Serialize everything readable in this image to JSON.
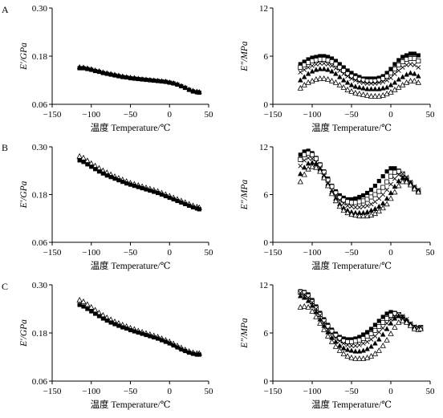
{
  "panel_labels": [
    "A",
    "B",
    "C"
  ],
  "chart_data": [
    {
      "type": "scatter",
      "panel": "A",
      "ylabel": "E′/GPa",
      "xlabel": "温度  Temperature/℃",
      "xlim": [
        -150,
        50
      ],
      "ylim": [
        0.06,
        0.3
      ],
      "xticks": [
        "−150",
        "−100",
        "−50",
        "0",
        "50"
      ],
      "yticks": [
        "0.06",
        "0.18",
        "0.30"
      ],
      "x": [
        -115,
        -110,
        -105,
        -100,
        -95,
        -90,
        -85,
        -80,
        -75,
        -70,
        -65,
        -60,
        -55,
        -50,
        -45,
        -40,
        -35,
        -30,
        -25,
        -20,
        -15,
        -10,
        -5,
        0,
        5,
        10,
        15,
        20,
        25,
        30,
        35,
        38
      ],
      "series": [
        {
          "marker": "triangle-filled",
          "values": [
            0.153,
            0.152,
            0.15,
            0.148,
            0.145,
            0.143,
            0.14,
            0.138,
            0.136,
            0.134,
            0.132,
            0.13,
            0.128,
            0.127,
            0.126,
            0.124,
            0.123,
            0.122,
            0.121,
            0.12,
            0.119,
            0.118,
            0.117,
            0.115,
            0.113,
            0.11,
            0.106,
            0.102,
            0.097,
            0.094,
            0.092,
            0.091
          ]
        },
        {
          "marker": "square-filled",
          "values": [
            0.15,
            0.15,
            0.148,
            0.146,
            0.143,
            0.141,
            0.138,
            0.136,
            0.134,
            0.132,
            0.13,
            0.128,
            0.127,
            0.125,
            0.124,
            0.123,
            0.122,
            0.121,
            0.12,
            0.119,
            0.118,
            0.117,
            0.116,
            0.114,
            0.112,
            0.109,
            0.105,
            0.101,
            0.096,
            0.092,
            0.09,
            0.089
          ]
        }
      ]
    },
    {
      "type": "scatter",
      "panel": "A",
      "ylabel": "E″/MPa",
      "xlabel": "温度  Temperature/℃",
      "xlim": [
        -150,
        50
      ],
      "ylim": [
        0,
        12
      ],
      "xticks": [
        "−150",
        "−100",
        "−50",
        "0",
        "50"
      ],
      "yticks": [
        "0",
        "6",
        "12"
      ],
      "x": [
        -115,
        -110,
        -105,
        -100,
        -95,
        -90,
        -85,
        -80,
        -75,
        -70,
        -65,
        -60,
        -55,
        -50,
        -45,
        -40,
        -35,
        -30,
        -25,
        -20,
        -15,
        -10,
        -5,
        0,
        5,
        10,
        15,
        20,
        25,
        30,
        35
      ],
      "series": [
        {
          "marker": "square-filled",
          "values": [
            5.0,
            5.3,
            5.6,
            5.8,
            5.9,
            6.0,
            6.0,
            5.9,
            5.7,
            5.4,
            5.0,
            4.6,
            4.2,
            3.9,
            3.6,
            3.4,
            3.2,
            3.2,
            3.2,
            3.2,
            3.3,
            3.5,
            3.9,
            4.4,
            5.0,
            5.5,
            5.9,
            6.1,
            6.3,
            6.3,
            6.1
          ]
        },
        {
          "marker": "square-open",
          "values": [
            4.6,
            4.9,
            5.2,
            5.4,
            5.5,
            5.6,
            5.6,
            5.5,
            5.3,
            5.0,
            4.6,
            4.2,
            3.8,
            3.5,
            3.3,
            3.1,
            3.0,
            2.9,
            2.9,
            2.9,
            3.0,
            3.2,
            3.5,
            3.9,
            4.4,
            4.9,
            5.3,
            5.6,
            5.7,
            5.7,
            5.4
          ]
        },
        {
          "marker": "cross",
          "values": [
            4.0,
            4.3,
            4.6,
            4.8,
            5.0,
            5.1,
            5.1,
            5.0,
            4.8,
            4.5,
            4.2,
            3.8,
            3.5,
            3.2,
            3.0,
            2.8,
            2.7,
            2.6,
            2.6,
            2.6,
            2.7,
            2.8,
            3.0,
            3.3,
            3.8,
            4.2,
            4.6,
            4.9,
            5.0,
            4.9,
            4.6
          ]
        },
        {
          "marker": "triangle-filled",
          "values": [
            3.0,
            3.4,
            3.8,
            4.1,
            4.3,
            4.4,
            4.4,
            4.3,
            4.1,
            3.8,
            3.4,
            3.0,
            2.7,
            2.4,
            2.2,
            2.1,
            2.0,
            1.9,
            1.9,
            1.9,
            1.9,
            2.0,
            2.1,
            2.4,
            2.7,
            3.1,
            3.4,
            3.7,
            3.9,
            3.8,
            3.5
          ]
        },
        {
          "marker": "triangle-open",
          "values": [
            2.0,
            2.4,
            2.7,
            2.9,
            3.1,
            3.2,
            3.2,
            3.1,
            2.9,
            2.7,
            2.4,
            2.1,
            1.8,
            1.6,
            1.4,
            1.3,
            1.2,
            1.1,
            1.0,
            1.0,
            1.0,
            1.1,
            1.3,
            1.5,
            1.8,
            2.1,
            2.4,
            2.7,
            2.9,
            2.9,
            2.7
          ]
        }
      ]
    },
    {
      "type": "scatter",
      "panel": "B",
      "ylabel": "E′/GPa",
      "xlabel": "温度  Temperature/℃",
      "xlim": [
        -150,
        50
      ],
      "ylim": [
        0.06,
        0.3
      ],
      "xticks": [
        "−150",
        "−100",
        "−50",
        "0",
        "50"
      ],
      "yticks": [
        "0.06",
        "0.18",
        "0.30"
      ],
      "x": [
        -115,
        -110,
        -105,
        -100,
        -95,
        -90,
        -85,
        -80,
        -75,
        -70,
        -65,
        -60,
        -55,
        -50,
        -45,
        -40,
        -35,
        -30,
        -25,
        -20,
        -15,
        -10,
        -5,
        0,
        5,
        10,
        15,
        20,
        25,
        30,
        35,
        38
      ],
      "series": [
        {
          "marker": "triangle-open",
          "values": [
            0.276,
            0.272,
            0.265,
            0.258,
            0.252,
            0.246,
            0.24,
            0.235,
            0.23,
            0.225,
            0.221,
            0.217,
            0.213,
            0.209,
            0.206,
            0.203,
            0.2,
            0.197,
            0.194,
            0.191,
            0.188,
            0.184,
            0.18,
            0.176,
            0.172,
            0.168,
            0.164,
            0.16,
            0.156,
            0.152,
            0.149,
            0.147
          ]
        },
        {
          "marker": "square-filled",
          "values": [
            0.266,
            0.262,
            0.256,
            0.25,
            0.244,
            0.238,
            0.233,
            0.228,
            0.224,
            0.22,
            0.216,
            0.212,
            0.208,
            0.205,
            0.202,
            0.199,
            0.196,
            0.193,
            0.19,
            0.187,
            0.184,
            0.18,
            0.176,
            0.172,
            0.168,
            0.164,
            0.16,
            0.156,
            0.152,
            0.148,
            0.145,
            0.143
          ]
        }
      ]
    },
    {
      "type": "scatter",
      "panel": "B",
      "ylabel": "E″/MPa",
      "xlabel": "温度  Temperature/℃",
      "xlim": [
        -150,
        50
      ],
      "ylim": [
        0,
        12
      ],
      "xticks": [
        "−150",
        "−100",
        "−50",
        "0",
        "50"
      ],
      "yticks": [
        "0",
        "6",
        "12"
      ],
      "x": [
        -115,
        -110,
        -105,
        -100,
        -95,
        -90,
        -85,
        -80,
        -75,
        -70,
        -65,
        -60,
        -55,
        -50,
        -45,
        -40,
        -35,
        -30,
        -25,
        -20,
        -15,
        -10,
        -5,
        0,
        5,
        10,
        15,
        20,
        25,
        30,
        35
      ],
      "series": [
        {
          "marker": "square-filled",
          "values": [
            11.0,
            11.4,
            11.5,
            11.2,
            10.6,
            9.8,
            8.9,
            8.0,
            7.1,
            6.4,
            5.9,
            5.6,
            5.4,
            5.4,
            5.5,
            5.7,
            5.9,
            6.2,
            6.6,
            7.1,
            7.7,
            8.3,
            8.9,
            9.3,
            9.3,
            9.0,
            8.5,
            7.9,
            7.3,
            6.8,
            6.4
          ]
        },
        {
          "marker": "square-open",
          "values": [
            10.4,
            11.0,
            11.2,
            11.0,
            10.5,
            9.7,
            8.8,
            7.8,
            7.0,
            6.2,
            5.6,
            5.3,
            5.1,
            5.0,
            5.0,
            5.1,
            5.2,
            5.4,
            5.7,
            6.0,
            6.4,
            6.9,
            7.6,
            8.3,
            8.8,
            8.9,
            8.6,
            8.0,
            7.4,
            6.8,
            6.4
          ]
        },
        {
          "marker": "cross",
          "values": [
            9.6,
            10.3,
            10.6,
            10.5,
            10.1,
            9.4,
            8.5,
            7.5,
            6.6,
            5.9,
            5.3,
            4.9,
            4.6,
            4.5,
            4.4,
            4.4,
            4.5,
            4.6,
            4.8,
            5.1,
            5.5,
            6.0,
            6.6,
            7.3,
            8.0,
            8.5,
            8.6,
            8.2,
            7.6,
            7.0,
            6.6
          ]
        },
        {
          "marker": "triangle-filled",
          "values": [
            8.6,
            9.4,
            9.9,
            10.0,
            9.8,
            9.2,
            8.3,
            7.3,
            6.3,
            5.5,
            4.8,
            4.3,
            4.0,
            3.8,
            3.7,
            3.7,
            3.7,
            3.8,
            4.0,
            4.2,
            4.5,
            4.9,
            5.5,
            6.2,
            7.0,
            7.7,
            8.1,
            8.0,
            7.5,
            6.9,
            6.5
          ]
        },
        {
          "marker": "triangle-open",
          "values": [
            7.6,
            8.5,
            9.2,
            9.5,
            9.4,
            8.9,
            8.1,
            7.1,
            6.1,
            5.2,
            4.5,
            4.0,
            3.7,
            3.5,
            3.4,
            3.3,
            3.3,
            3.3,
            3.4,
            3.6,
            3.9,
            4.3,
            4.8,
            5.5,
            6.3,
            7.1,
            7.6,
            7.6,
            7.2,
            6.7,
            6.3
          ]
        }
      ]
    },
    {
      "type": "scatter",
      "panel": "C",
      "ylabel": "E′/GPa",
      "xlabel": "温度  Temperature/℃",
      "xlim": [
        -150,
        50
      ],
      "ylim": [
        0.06,
        0.3
      ],
      "xticks": [
        "−150",
        "−100",
        "−50",
        "0",
        "50"
      ],
      "yticks": [
        "0.06",
        "0.18",
        "0.30"
      ],
      "x": [
        -115,
        -110,
        -105,
        -100,
        -95,
        -90,
        -85,
        -80,
        -75,
        -70,
        -65,
        -60,
        -55,
        -50,
        -45,
        -40,
        -35,
        -30,
        -25,
        -20,
        -15,
        -10,
        -5,
        0,
        5,
        10,
        15,
        20,
        25,
        30,
        35,
        38
      ],
      "series": [
        {
          "marker": "triangle-open",
          "values": [
            0.262,
            0.258,
            0.251,
            0.244,
            0.237,
            0.23,
            0.224,
            0.218,
            0.213,
            0.208,
            0.204,
            0.2,
            0.196,
            0.192,
            0.189,
            0.185,
            0.182,
            0.179,
            0.176,
            0.173,
            0.17,
            0.166,
            0.162,
            0.158,
            0.153,
            0.148,
            0.143,
            0.138,
            0.134,
            0.131,
            0.129,
            0.129
          ]
        },
        {
          "marker": "square-filled",
          "values": [
            0.25,
            0.246,
            0.24,
            0.234,
            0.228,
            0.222,
            0.216,
            0.211,
            0.206,
            0.202,
            0.198,
            0.194,
            0.191,
            0.187,
            0.184,
            0.181,
            0.178,
            0.175,
            0.172,
            0.169,
            0.166,
            0.162,
            0.158,
            0.154,
            0.149,
            0.144,
            0.139,
            0.135,
            0.131,
            0.128,
            0.126,
            0.126
          ]
        }
      ]
    },
    {
      "type": "scatter",
      "panel": "C",
      "ylabel": "E″/MPa",
      "xlabel": "温度  Temperature/℃",
      "xlim": [
        -150,
        50
      ],
      "ylim": [
        0,
        12
      ],
      "xticks": [
        "−150",
        "−100",
        "−50",
        "0",
        "50"
      ],
      "yticks": [
        "0",
        "6",
        "12"
      ],
      "x": [
        -115,
        -110,
        -105,
        -100,
        -95,
        -90,
        -85,
        -80,
        -75,
        -70,
        -65,
        -60,
        -55,
        -50,
        -45,
        -40,
        -35,
        -30,
        -25,
        -20,
        -15,
        -10,
        -5,
        0,
        5,
        10,
        15,
        20,
        25,
        30,
        35,
        38
      ],
      "series": [
        {
          "marker": "square-filled",
          "values": [
            11.2,
            11.1,
            10.8,
            10.1,
            9.3,
            8.5,
            7.7,
            7.0,
            6.4,
            5.9,
            5.5,
            5.3,
            5.2,
            5.2,
            5.3,
            5.5,
            5.8,
            6.1,
            6.5,
            7.0,
            7.5,
            8.0,
            8.4,
            8.6,
            8.5,
            8.2,
            7.8,
            7.4,
            7.0,
            6.7,
            6.6,
            6.7
          ]
        },
        {
          "marker": "square-open",
          "values": [
            11.1,
            11.0,
            10.6,
            9.9,
            9.1,
            8.3,
            7.5,
            6.8,
            6.2,
            5.7,
            5.3,
            5.0,
            4.9,
            4.9,
            5.0,
            5.1,
            5.3,
            5.6,
            5.9,
            6.3,
            6.8,
            7.3,
            7.8,
            8.2,
            8.4,
            8.3,
            7.9,
            7.4,
            7.0,
            6.7,
            6.6,
            6.7
          ]
        },
        {
          "marker": "cross",
          "values": [
            11.0,
            10.8,
            10.4,
            9.8,
            9.0,
            8.2,
            7.3,
            6.5,
            5.9,
            5.4,
            5.0,
            4.7,
            4.5,
            4.4,
            4.4,
            4.5,
            4.7,
            4.9,
            5.2,
            5.6,
            6.1,
            6.6,
            7.2,
            7.7,
            8.1,
            8.3,
            8.1,
            7.7,
            7.2,
            6.8,
            6.6,
            6.7
          ]
        },
        {
          "marker": "triangle-filled",
          "values": [
            10.6,
            10.4,
            10.0,
            9.4,
            8.6,
            7.7,
            6.9,
            6.1,
            5.4,
            4.9,
            4.4,
            4.1,
            3.9,
            3.8,
            3.7,
            3.7,
            3.8,
            4.0,
            4.3,
            4.7,
            5.2,
            5.8,
            6.5,
            7.2,
            7.8,
            8.1,
            8.0,
            7.6,
            7.1,
            6.7,
            6.5,
            6.6
          ]
        },
        {
          "marker": "triangle-open",
          "values": [
            9.2,
            9.3,
            9.2,
            8.7,
            8.0,
            7.2,
            6.4,
            5.6,
            4.9,
            4.3,
            3.8,
            3.4,
            3.1,
            2.9,
            2.8,
            2.8,
            2.8,
            2.9,
            3.1,
            3.4,
            3.8,
            4.4,
            5.1,
            5.9,
            6.7,
            7.3,
            7.5,
            7.3,
            6.9,
            6.5,
            6.4,
            6.5
          ]
        }
      ]
    }
  ]
}
